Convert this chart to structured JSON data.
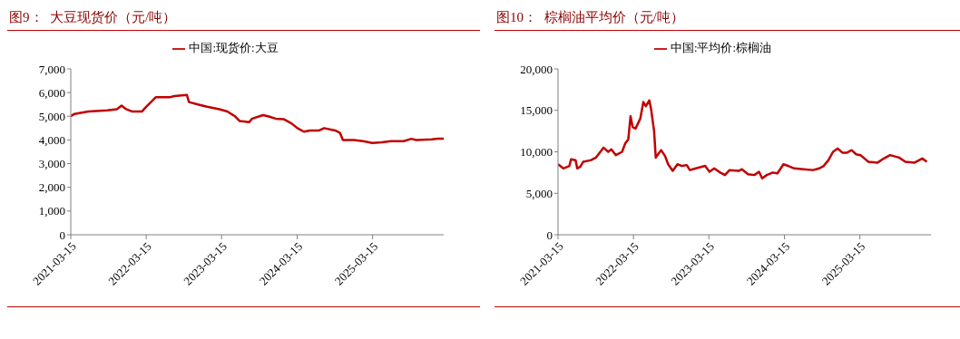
{
  "chart_data": [
    {
      "type": "line",
      "title": "图9：  大豆现货价（元/吨）",
      "xlim": [
        "2021-03-15",
        "2026-02-22"
      ],
      "xticks": [
        "2021-03-15",
        "2022-03-15",
        "2023-03-15",
        "2024-03-15",
        "2025-03-15"
      ],
      "ylim": [
        0,
        7000
      ],
      "yticks": [
        0,
        {
          "value": 1000,
          "label": "1,000"
        },
        {
          "value": 2000,
          "label": "2,000"
        },
        {
          "value": 3000,
          "label": "3,000"
        },
        {
          "value": 4000,
          "label": "4,000"
        },
        {
          "value": 5000,
          "label": "5,000"
        },
        {
          "value": 6000,
          "label": "6,000"
        },
        {
          "value": 7000,
          "label": "7,000"
        }
      ],
      "grid": false,
      "legend": "top",
      "marker": "none",
      "line_style": "solid",
      "x": [
        "2021-03-15",
        "2021-04-02",
        "2021-06-08",
        "2021-09-08",
        "2021-10-24",
        "2021-11-16",
        "2021-12-08",
        "2022-01-07",
        "2022-02-22",
        "2022-03-15",
        "2022-04-07",
        "2022-04-30",
        "2022-07-06",
        "2022-07-29",
        "2022-09-28",
        "2022-10-08",
        "2022-11-20",
        "2023-01-04",
        "2023-03-04",
        "2023-04-12",
        "2023-05-19",
        "2023-06-11",
        "2023-07-26",
        "2023-08-10",
        "2023-10-02",
        "2023-10-25",
        "2023-12-02",
        "2024-01-09",
        "2024-02-16",
        "2024-03-16",
        "2024-04-16",
        "2024-05-16",
        "2024-06-30",
        "2024-07-23",
        "2024-09-15",
        "2024-10-08",
        "2024-10-22",
        "2024-12-14",
        "2025-01-29",
        "2025-03-13",
        "2025-04-28",
        "2025-06-12",
        "2025-08-12",
        "2025-09-19",
        "2025-10-12",
        "2025-12-26",
        "2026-01-25",
        "2026-02-22"
      ],
      "series": [
        {
          "name": "中国:现货价:大豆",
          "color": "#c00000",
          "values": [
            5000,
            5100,
            5200,
            5250,
            5300,
            5450,
            5300,
            5200,
            5200,
            5400,
            5600,
            5800,
            5800,
            5850,
            5900,
            5600,
            5500,
            5400,
            5300,
            5200,
            5000,
            4800,
            4750,
            4900,
            5050,
            5000,
            4900,
            4880,
            4700,
            4500,
            4350,
            4400,
            4400,
            4500,
            4400,
            4300,
            4000,
            4000,
            3950,
            3870,
            3900,
            3950,
            3950,
            4050,
            4000,
            4030,
            4050,
            4050
          ]
        }
      ]
    },
    {
      "type": "line",
      "title": "图10：  棕榈油平均价（元/吨）",
      "xlim": [
        "2021-03-15",
        "2026-02-22"
      ],
      "xticks": [
        "2021-03-15",
        "2022-03-15",
        "2023-03-15",
        "2024-03-15",
        "2025-03-15"
      ],
      "ylim": [
        0,
        20000
      ],
      "yticks": [
        0,
        {
          "value": 5000,
          "label": "5,000"
        },
        {
          "value": 10000,
          "label": "10,000"
        },
        {
          "value": 15000,
          "label": "15,000"
        },
        {
          "value": 20000,
          "label": "20,000"
        }
      ],
      "grid": false,
      "legend": "top",
      "marker": "none",
      "line_style": "solid",
      "x": [
        "2021-03-15",
        "2021-04-10",
        "2021-05-09",
        "2021-05-17",
        "2021-06-08",
        "2021-06-16",
        "2021-07-01",
        "2021-07-15",
        "2021-08-22",
        "2021-09-14",
        "2021-10-21",
        "2021-11-13",
        "2021-11-28",
        "2021-12-20",
        "2022-01-19",
        "2022-02-03",
        "2022-02-18",
        "2022-03-01",
        "2022-03-11",
        "2022-03-25",
        "2022-04-17",
        "2022-05-02",
        "2022-05-14",
        "2022-05-31",
        "2022-06-08",
        "2022-06-23",
        "2022-07-01",
        "2022-07-15",
        "2022-07-27",
        "2022-08-15",
        "2022-08-30",
        "2022-09-21",
        "2022-10-14",
        "2022-11-05",
        "2022-11-28",
        "2022-12-13",
        "2023-01-11",
        "2023-02-25",
        "2023-03-18",
        "2023-04-10",
        "2023-05-09",
        "2023-06-01",
        "2023-06-23",
        "2023-08-07",
        "2023-08-22",
        "2023-09-21",
        "2023-10-21",
        "2023-11-13",
        "2023-11-28",
        "2023-12-20",
        "2024-01-19",
        "2024-02-10",
        "2024-03-10",
        "2024-04-02",
        "2024-05-02",
        "2024-06-16",
        "2024-07-30",
        "2024-08-15",
        "2024-08-30",
        "2024-09-21",
        "2024-10-14",
        "2024-11-05",
        "2024-11-28",
        "2024-12-20",
        "2025-01-12",
        "2025-02-03",
        "2025-02-25",
        "2025-03-18",
        "2025-04-25",
        "2025-06-09",
        "2025-07-09",
        "2025-08-08",
        "2025-09-21",
        "2025-10-21",
        "2025-12-05",
        "2026-01-11",
        "2026-02-02"
      ],
      "series": [
        {
          "name": "中国:平均价:棕榈油",
          "color": "#c00000",
          "values": [
            8500,
            8000,
            8300,
            9100,
            9000,
            8000,
            8200,
            8800,
            9000,
            9300,
            10500,
            10000,
            10300,
            9600,
            10000,
            11000,
            11500,
            14300,
            13000,
            12800,
            14000,
            16000,
            15500,
            16200,
            15200,
            12500,
            9300,
            9800,
            10200,
            9500,
            8500,
            7700,
            8500,
            8300,
            8400,
            7800,
            8000,
            8300,
            7600,
            8000,
            7500,
            7200,
            7800,
            7700,
            7900,
            7300,
            7200,
            7600,
            6800,
            7200,
            7500,
            7400,
            8500,
            8300,
            8000,
            7900,
            7800,
            7900,
            8000,
            8300,
            9000,
            10000,
            10400,
            9900,
            9900,
            10200,
            9700,
            9600,
            8800,
            8700,
            9200,
            9600,
            9300,
            8800,
            8700,
            9200,
            8800
          ]
        }
      ]
    }
  ]
}
